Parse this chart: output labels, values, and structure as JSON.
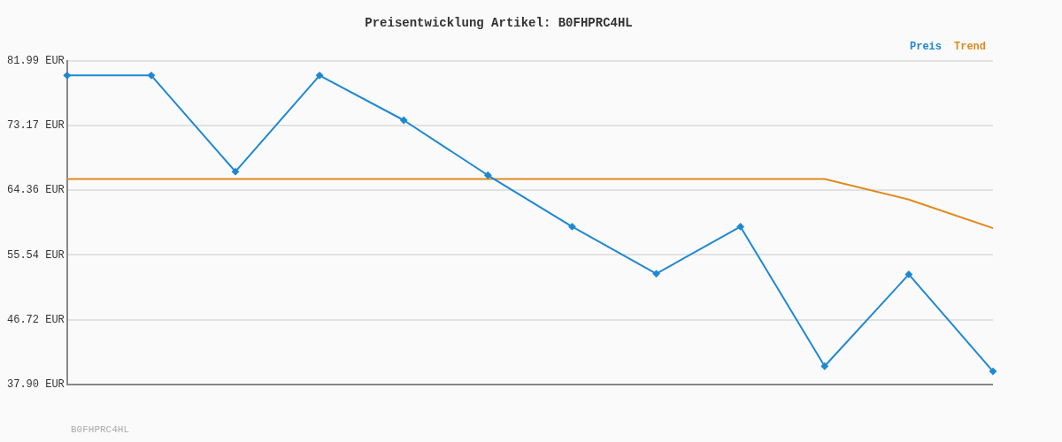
{
  "chart_data": {
    "type": "line",
    "title": "Preisentwicklung Artikel: B0FHPRC4HL",
    "categories": [
      null,
      null,
      null,
      null,
      null,
      null,
      null,
      null,
      null,
      null,
      null,
      null
    ],
    "series": [
      {
        "name": "Preis",
        "color": "#1f88d2",
        "marker": "diamond",
        "values": [
          80.0,
          80.0,
          66.9,
          80.0,
          73.9,
          66.4,
          59.4,
          53.0,
          59.4,
          40.4,
          52.9,
          39.7
        ]
      },
      {
        "name": "Trend",
        "color": "#e08a1e",
        "marker": "none",
        "values": [
          65.9,
          65.9,
          65.9,
          65.9,
          65.9,
          65.9,
          65.9,
          65.9,
          65.9,
          65.9,
          63.1,
          59.2
        ]
      }
    ],
    "ylim": [
      37.9,
      81.99
    ],
    "yticks": [
      {
        "value": 37.9,
        "label": "37.90 EUR"
      },
      {
        "value": 46.72,
        "label": "46.72 EUR"
      },
      {
        "value": 55.54,
        "label": "55.54 EUR"
      },
      {
        "value": 64.36,
        "label": "64.36 EUR"
      },
      {
        "value": 73.17,
        "label": "73.17 EUR"
      },
      {
        "value": 81.99,
        "label": "81.99 EUR"
      }
    ],
    "grid": "y",
    "legend": "top right",
    "line_style": "solid",
    "annotations": [
      "B0FHPRC4HL"
    ]
  }
}
